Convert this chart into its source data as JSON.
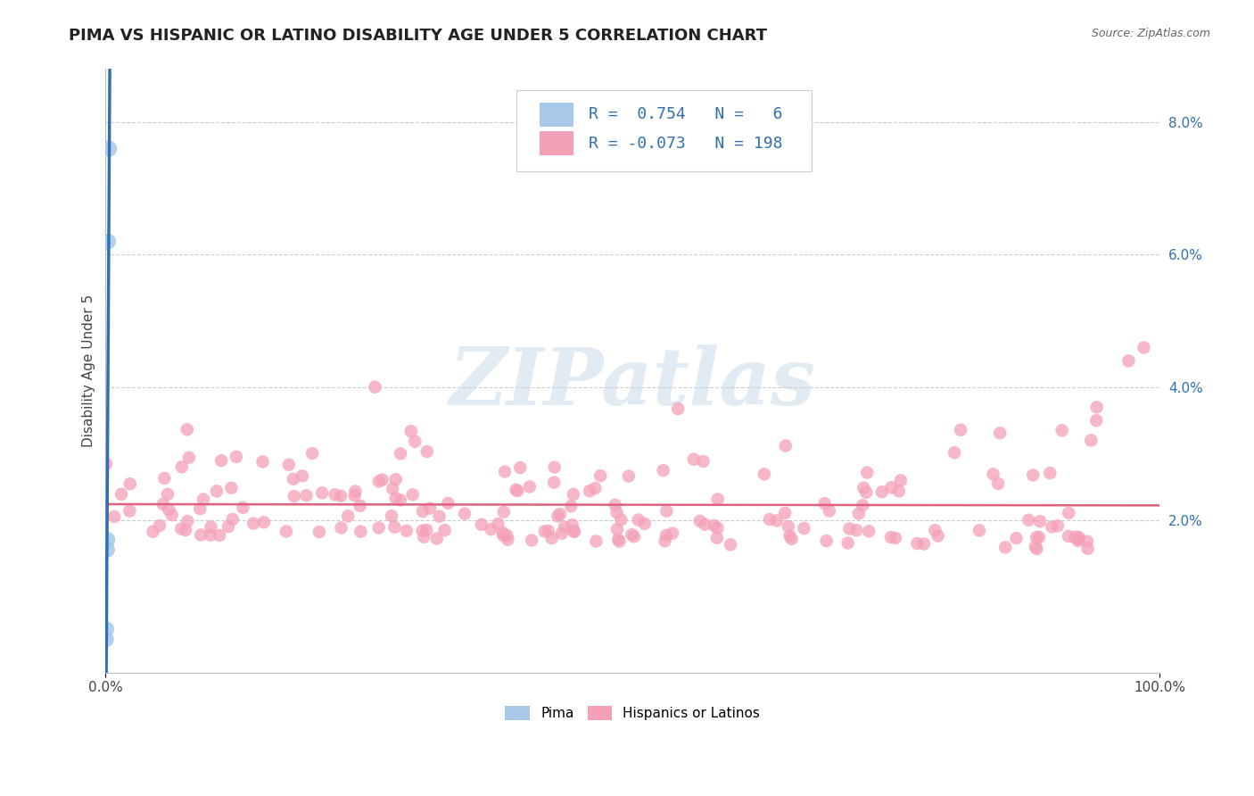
{
  "title": "PIMA VS HISPANIC OR LATINO DISABILITY AGE UNDER 5 CORRELATION CHART",
  "source": "Source: ZipAtlas.com",
  "ylabel": "Disability Age Under 5",
  "xlim": [
    0,
    100
  ],
  "ylim": [
    -0.3,
    8.8
  ],
  "ytick_vals": [
    2.0,
    4.0,
    6.0,
    8.0
  ],
  "ytick_labels": [
    "2.0%",
    "4.0%",
    "6.0%",
    "8.0%"
  ],
  "xtick_vals": [
    0,
    100
  ],
  "xtick_labels": [
    "0.0%",
    "100.0%"
  ],
  "legend_r_pima": "0.754",
  "legend_n_pima": "6",
  "legend_r_hisp": "-0.073",
  "legend_n_hisp": "198",
  "pima_color": "#a8c8e8",
  "hisp_color": "#f4a0b8",
  "pima_line_color": "#3070b0",
  "hisp_line_color": "#e06080",
  "watermark": "ZIPatlas",
  "background_color": "#ffffff",
  "grid_color": "#cccccc",
  "title_fontsize": 13,
  "axis_label_fontsize": 11,
  "tick_fontsize": 11,
  "legend_label_color": "#3070b0"
}
